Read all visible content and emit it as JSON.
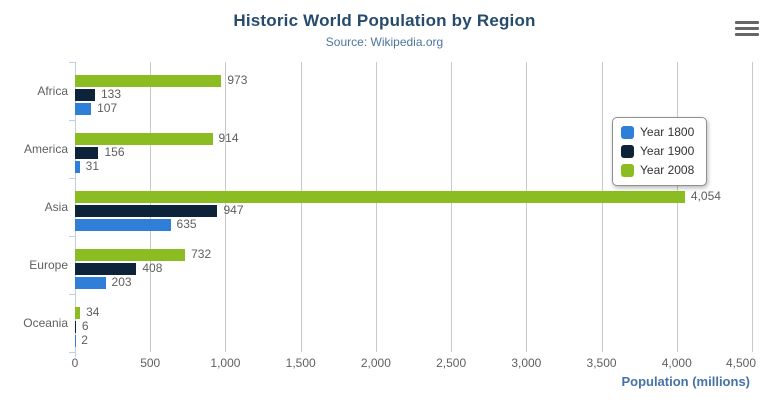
{
  "header": {
    "title": "Historic World Population by Region",
    "subtitle": "Source: Wikipedia.org"
  },
  "icons": {
    "menu": "hamburger-icon"
  },
  "colors": {
    "title": "#274b6d",
    "subtitle": "#4d759e",
    "axis_title": "#4572a7",
    "axis_labels": "#606060",
    "gridline": "#c9c9c9",
    "axis_line": "#c0d0e0",
    "legend_border": "#909090",
    "menu_icon": "#666666"
  },
  "chart_data": {
    "type": "bar",
    "orientation": "horizontal",
    "title": "Historic World Population by Region",
    "subtitle": "Source: Wikipedia.org",
    "categories": [
      "Africa",
      "America",
      "Asia",
      "Europe",
      "Oceania"
    ],
    "series": [
      {
        "name": "Year 1800",
        "color": "#2f7ed8",
        "values": [
          107,
          31,
          635,
          203,
          2
        ]
      },
      {
        "name": "Year 1900",
        "color": "#0d233a",
        "values": [
          133,
          156,
          947,
          408,
          6
        ]
      },
      {
        "name": "Year 2008",
        "color": "#8bbc21",
        "values": [
          973,
          914,
          4054,
          732,
          34
        ]
      }
    ],
    "bar_display_order_top_to_bottom": [
      "Year 2008",
      "Year 1900",
      "Year 1800"
    ],
    "data_labels": "shown at bar ends with thousands separators",
    "xlabel": "Population (millions)",
    "ylabel": "",
    "xlim": [
      0,
      4500
    ],
    "x_ticks": [
      0,
      500,
      1000,
      1500,
      2000,
      2500,
      3000,
      3500,
      4000,
      4500
    ],
    "grid": "vertical gridlines only",
    "legend_position": "right, boxed"
  }
}
